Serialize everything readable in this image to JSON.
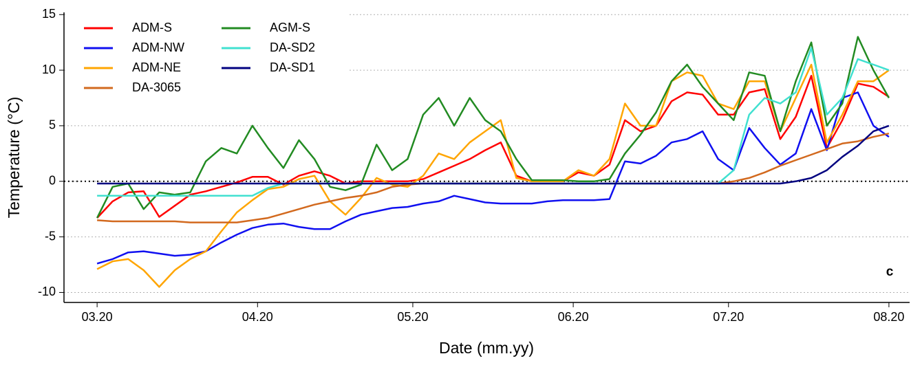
{
  "chart_data": {
    "type": "line",
    "xlabel": "Date (mm.yy)",
    "ylabel": "Temperature (°C)",
    "annotation": "c",
    "x": [
      0,
      3,
      6,
      9,
      12,
      15,
      18,
      21,
      24,
      27,
      30,
      33,
      36,
      39,
      42,
      45,
      48,
      51,
      54,
      57,
      60,
      63,
      66,
      69,
      72,
      75,
      78,
      81,
      84,
      87,
      90,
      93,
      96,
      99,
      102,
      105,
      108,
      111,
      114,
      117,
      120,
      123,
      126,
      129,
      132,
      135,
      138,
      141,
      144,
      147,
      150,
      153
    ],
    "xlim": [
      -6.4,
      157
    ],
    "ylim": [
      -10.9,
      15.2
    ],
    "xticks": [
      {
        "value": 0,
        "label": "03.20"
      },
      {
        "value": 31,
        "label": "04.20"
      },
      {
        "value": 61,
        "label": "05.20"
      },
      {
        "value": 92,
        "label": "06.20"
      },
      {
        "value": 122,
        "label": "07.20"
      },
      {
        "value": 153,
        "label": "08.20"
      }
    ],
    "yticks": [
      -10,
      -5,
      0,
      5,
      10,
      15
    ],
    "grid": true,
    "hline": 0,
    "series": [
      {
        "name": "ADM-S",
        "color": "#ff0000",
        "values": [
          -3.3,
          -1.8,
          -1.0,
          -0.9,
          -3.2,
          -2.2,
          -1.2,
          -0.9,
          -0.5,
          -0.1,
          0.4,
          0.4,
          -0.3,
          0.5,
          0.9,
          0.5,
          -0.2,
          0,
          0,
          0,
          0,
          0.2,
          0.8,
          1.4,
          2.0,
          2.8,
          3.5,
          0.5,
          0,
          0,
          0,
          0.8,
          0.5,
          1.5,
          5.5,
          4.5,
          5.0,
          7.2,
          8.0,
          7.8,
          6.0,
          6.0,
          8.0,
          8.3,
          3.8,
          5.8,
          9.5,
          3.0,
          5.5,
          8.8,
          8.5,
          7.6
        ]
      },
      {
        "name": "ADM-NW",
        "color": "#1010f0",
        "values": [
          -7.4,
          -7.0,
          -6.4,
          -6.3,
          -6.5,
          -6.7,
          -6.6,
          -6.3,
          -5.5,
          -4.8,
          -4.2,
          -3.9,
          -3.8,
          -4.1,
          -4.3,
          -4.3,
          -3.6,
          -3.0,
          -2.7,
          -2.4,
          -2.3,
          -2.0,
          -1.8,
          -1.3,
          -1.6,
          -1.9,
          -2.0,
          -2.0,
          -2.0,
          -1.8,
          -1.7,
          -1.7,
          -1.7,
          -1.6,
          1.8,
          1.6,
          2.3,
          3.5,
          3.8,
          4.5,
          2.0,
          1.0,
          4.8,
          3.0,
          1.5,
          2.5,
          6.5,
          2.8,
          7.5,
          8.0,
          5.0,
          4.0
        ]
      },
      {
        "name": "ADM-NE",
        "color": "#ffa500",
        "values": [
          -7.9,
          -7.2,
          -7.0,
          -8.0,
          -9.5,
          -8.0,
          -7.0,
          -6.3,
          -4.5,
          -2.8,
          -1.7,
          -0.7,
          -0.5,
          0.2,
          0.5,
          -1.8,
          -3.0,
          -1.5,
          0.3,
          -0.3,
          -0.5,
          0.5,
          2.5,
          2.0,
          3.5,
          4.5,
          5.5,
          0.3,
          0,
          0,
          0,
          1.0,
          0.5,
          2.0,
          7.0,
          5.0,
          5.0,
          9.0,
          9.8,
          9.5,
          7.0,
          6.5,
          9.0,
          9.0,
          4.5,
          7.5,
          10.5,
          3.5,
          6.0,
          9.0,
          9.0,
          10.0
        ]
      },
      {
        "name": "DA-3065",
        "color": "#d2691e",
        "values": [
          -3.5,
          -3.6,
          -3.6,
          -3.6,
          -3.6,
          -3.6,
          -3.7,
          -3.7,
          -3.7,
          -3.7,
          -3.5,
          -3.3,
          -2.9,
          -2.5,
          -2.1,
          -1.8,
          -1.5,
          -1.3,
          -1.0,
          -0.5,
          -0.3,
          -0.2,
          -0.2,
          -0.2,
          -0.2,
          -0.2,
          -0.2,
          -0.2,
          -0.2,
          -0.2,
          -0.2,
          -0.2,
          -0.2,
          -0.2,
          -0.2,
          -0.2,
          -0.2,
          -0.2,
          -0.2,
          -0.2,
          -0.2,
          0.0,
          0.3,
          0.8,
          1.4,
          1.9,
          2.4,
          2.9,
          3.4,
          3.6,
          4.0,
          4.3
        ]
      },
      {
        "name": "AGM-S",
        "color": "#228b22",
        "values": [
          -3.3,
          -0.5,
          -0.2,
          -2.5,
          -1.0,
          -1.2,
          -1.0,
          1.8,
          3.0,
          2.5,
          5.0,
          3.0,
          1.2,
          3.7,
          2.0,
          -0.5,
          -0.8,
          -0.3,
          3.3,
          1.0,
          2.0,
          6.0,
          7.5,
          5.0,
          7.5,
          5.5,
          4.5,
          2.0,
          0.1,
          0.1,
          0.1,
          0.0,
          0.0,
          0.2,
          2.5,
          4.2,
          6.2,
          9.0,
          10.5,
          8.5,
          7.0,
          5.5,
          9.8,
          9.5,
          4.5,
          9.0,
          12.5,
          5.0,
          7.0,
          13.0,
          10.0,
          7.5
        ]
      },
      {
        "name": "DA-SD2",
        "color": "#40e0d0",
        "values": [
          -1.3,
          -1.3,
          -1.3,
          -1.3,
          -1.3,
          -1.3,
          -1.3,
          -1.3,
          -1.3,
          -1.3,
          -1.3,
          -0.6,
          -0.2,
          -0.2,
          -0.2,
          -0.2,
          -0.2,
          -0.2,
          -0.2,
          -0.2,
          -0.2,
          -0.2,
          -0.2,
          -0.2,
          -0.2,
          -0.2,
          -0.2,
          -0.2,
          -0.2,
          -0.2,
          -0.2,
          -0.2,
          -0.2,
          -0.2,
          -0.2,
          -0.2,
          -0.2,
          -0.2,
          -0.2,
          -0.2,
          -0.2,
          1.0,
          6.0,
          7.5,
          7.0,
          8.0,
          12.0,
          6.0,
          7.5,
          11.0,
          10.5,
          10.0
        ]
      },
      {
        "name": "DA-SD1",
        "color": "#000080",
        "values": [
          -0.2,
          -0.2,
          -0.2,
          -0.2,
          -0.2,
          -0.2,
          -0.2,
          -0.2,
          -0.2,
          -0.2,
          -0.2,
          -0.2,
          -0.2,
          -0.2,
          -0.2,
          -0.2,
          -0.2,
          -0.2,
          -0.2,
          -0.2,
          -0.2,
          -0.2,
          -0.2,
          -0.2,
          -0.2,
          -0.2,
          -0.2,
          -0.2,
          -0.2,
          -0.2,
          -0.2,
          -0.2,
          -0.2,
          -0.2,
          -0.2,
          -0.2,
          -0.2,
          -0.2,
          -0.2,
          -0.2,
          -0.2,
          -0.2,
          -0.2,
          -0.2,
          -0.2,
          0.0,
          0.3,
          1.0,
          2.2,
          3.2,
          4.5,
          5.0
        ]
      }
    ]
  }
}
